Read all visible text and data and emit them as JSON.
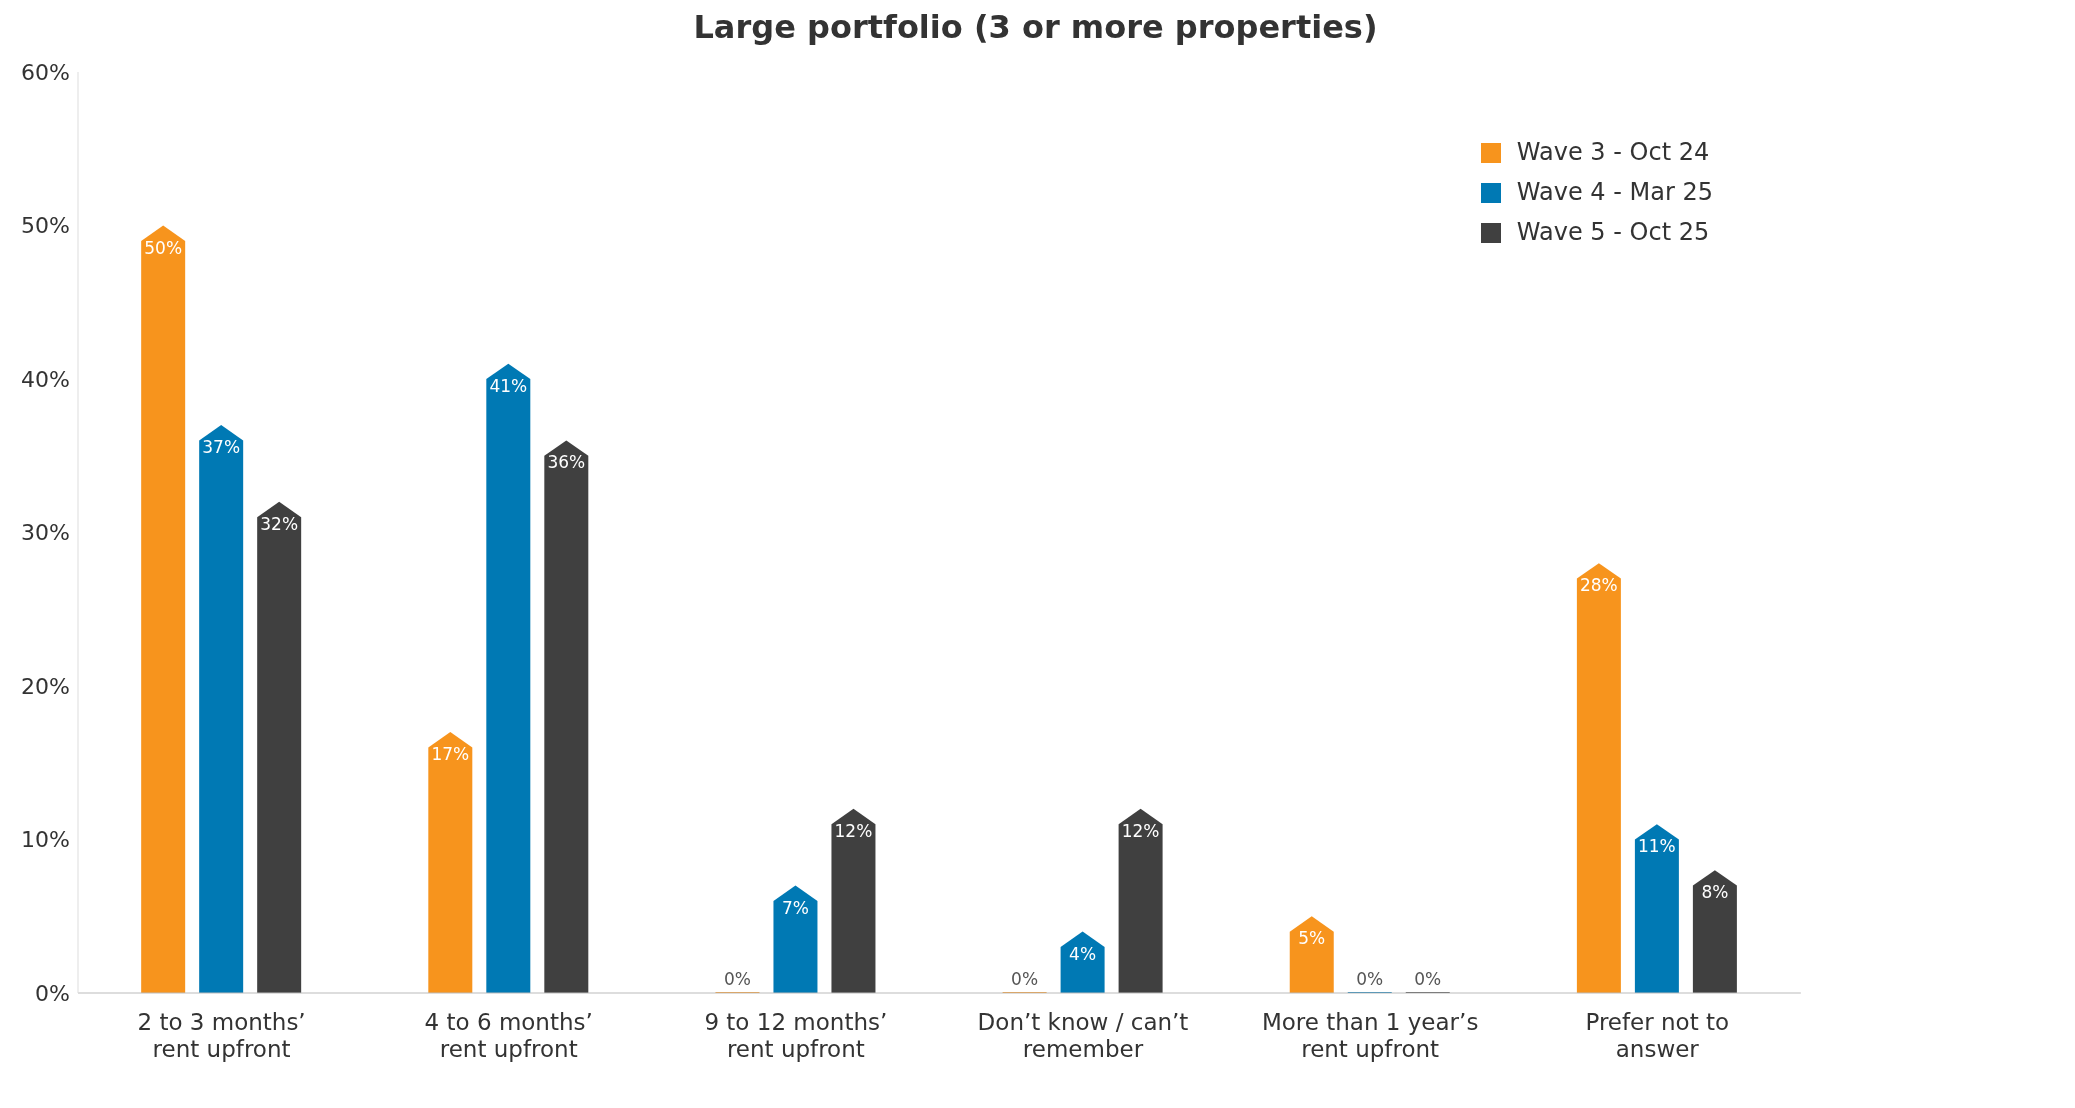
{
  "chart_data": {
    "type": "bar",
    "title": "Large portfolio (3 or more properties)",
    "categories": [
      "2 to 3 months’ rent upfront",
      "4 to 6 months’ rent upfront",
      "9 to 12 months’ rent upfront",
      "Don’t know / can’t remember",
      "More than 1 year’s rent upfront",
      "Prefer not to answer"
    ],
    "series": [
      {
        "name": "Wave 3 - Oct 24",
        "color": "#f7941d",
        "values": [
          50,
          17,
          0,
          0,
          5,
          28
        ],
        "value_labels": [
          "50%",
          "17%",
          "0%",
          "0%",
          "5%",
          "28%"
        ]
      },
      {
        "name": "Wave 4 - Mar 25",
        "color": "#0079b4",
        "values": [
          37,
          41,
          7,
          4,
          0,
          11
        ],
        "value_labels": [
          "37%",
          "41%",
          "7%",
          "4%",
          "0%",
          "11%"
        ]
      },
      {
        "name": "Wave 5 - Oct 25",
        "color": "#404040",
        "values": [
          32,
          36,
          12,
          12,
          0,
          8
        ],
        "value_labels": [
          "32%",
          "36%",
          "12%",
          "12%",
          "0%",
          "8%"
        ]
      }
    ],
    "ylim": [
      0,
      60
    ],
    "yticks": [
      {
        "value": 0,
        "label": "0%"
      },
      {
        "value": 10,
        "label": "10%"
      },
      {
        "value": 20,
        "label": "20%"
      },
      {
        "value": 30,
        "label": "30%"
      },
      {
        "value": 40,
        "label": "40%"
      },
      {
        "value": 50,
        "label": "50%"
      },
      {
        "value": 60,
        "label": "60%"
      }
    ],
    "grid": false,
    "legend": "top right"
  }
}
